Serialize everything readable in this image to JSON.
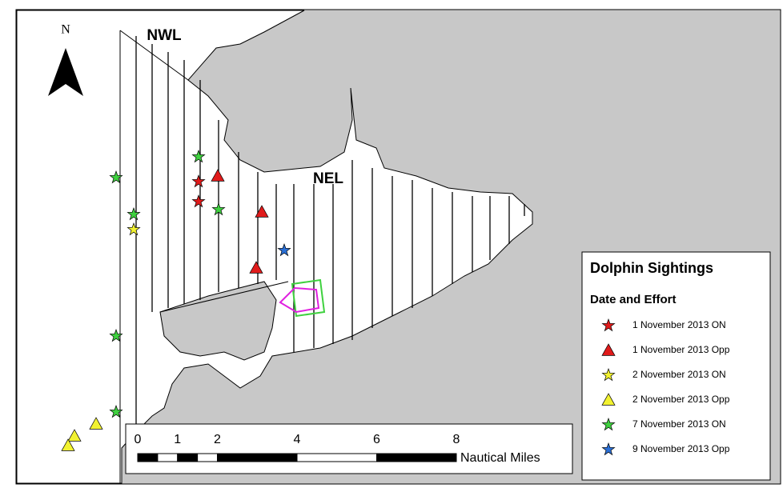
{
  "north_label": "N",
  "area_labels": [
    "NWL",
    "NEL"
  ],
  "legend": {
    "title": "Dolphin Sightings",
    "subtitle": "Date and Effort",
    "entries": [
      {
        "label": "1 November 2013 ON",
        "color": "#e01b1b",
        "shape": "star"
      },
      {
        "label": "1 November 2013 Opp",
        "color": "#e01b1b",
        "shape": "triangle"
      },
      {
        "label": "2 November 2013 ON",
        "color": "#f2f230",
        "shape": "star"
      },
      {
        "label": "2 November 2013 Opp",
        "color": "#f2f230",
        "shape": "triangle"
      },
      {
        "label": "7 November 2013 ON",
        "color": "#3fd13f",
        "shape": "star"
      },
      {
        "label": "9 November 2013 Opp",
        "color": "#2a6fd6",
        "shape": "star"
      }
    ]
  },
  "scale_bar": {
    "ticks": [
      0,
      1,
      2,
      4,
      6,
      8
    ],
    "unit": "Nautical Miles"
  }
}
